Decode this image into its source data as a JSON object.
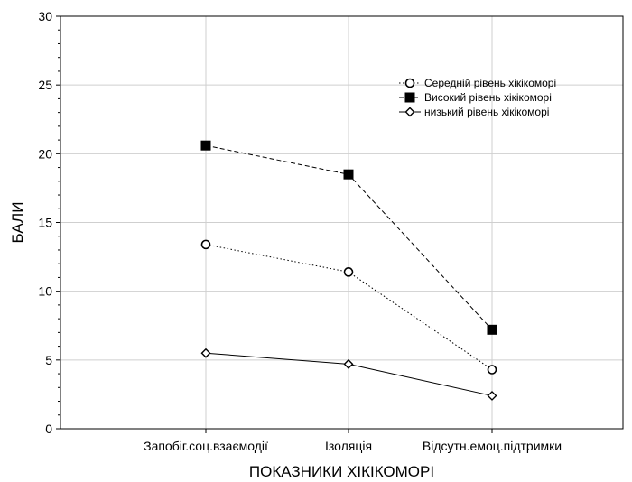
{
  "chart_data": {
    "type": "line",
    "title": "",
    "xlabel": "ПОКАЗНИКИ ХІКІКОМОРІ",
    "ylabel": "БАЛИ",
    "categories": [
      "Запобіг.соц.взаємодії",
      "Ізоляція",
      "Відсутн.емоц.підтримки"
    ],
    "ylim": [
      0,
      30
    ],
    "yticks": [
      "0",
      "5",
      "10",
      "15",
      "20",
      "25",
      "30"
    ],
    "grid": true,
    "legend_position": "top-right",
    "series": [
      {
        "name": "Середній рівень хікікоморі",
        "values": [
          13.4,
          11.4,
          4.3
        ],
        "marker": "circle-open",
        "line": "dotted",
        "color": "#000000"
      },
      {
        "name": "Високий рівень хікікоморі",
        "values": [
          20.6,
          18.5,
          7.2
        ],
        "marker": "square-filled",
        "line": "dashed",
        "color": "#000000"
      },
      {
        "name": "низький рівень хікікоморі",
        "values": [
          5.5,
          4.7,
          2.4
        ],
        "marker": "diamond-open",
        "line": "solid",
        "color": "#000000"
      }
    ]
  }
}
